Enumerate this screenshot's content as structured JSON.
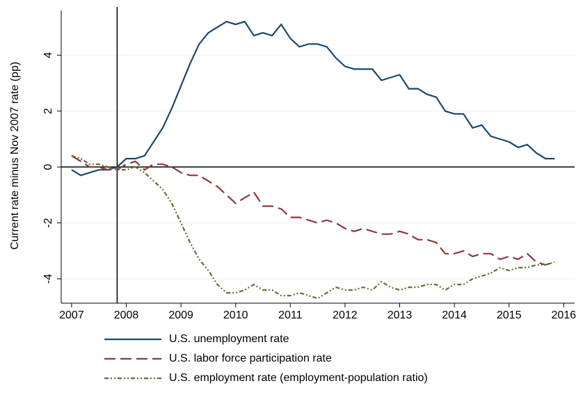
{
  "chart_data": {
    "type": "line",
    "ylabel": "Current rate minus Nov 2007 rate (pp)",
    "xlim": [
      2006.81,
      2016.2
    ],
    "ylim": [
      -4.87,
      5.6
    ],
    "xticks": [
      2007,
      2008,
      2009,
      2010,
      2011,
      2012,
      2013,
      2014,
      2015,
      2016
    ],
    "yticks": [
      -4,
      -2,
      0,
      2,
      4
    ],
    "grid": true,
    "xline": 2007.833,
    "yline": 0,
    "legend": "bottom",
    "x": [
      2007,
      2007.167,
      2007.333,
      2007.5,
      2007.667,
      2007.833,
      2008,
      2008.167,
      2008.333,
      2008.5,
      2008.667,
      2008.833,
      2009,
      2009.167,
      2009.333,
      2009.5,
      2009.667,
      2009.833,
      2010,
      2010.167,
      2010.333,
      2010.5,
      2010.667,
      2010.833,
      2011,
      2011.167,
      2011.333,
      2011.5,
      2011.667,
      2011.833,
      2012,
      2012.167,
      2012.333,
      2012.5,
      2012.667,
      2012.833,
      2013,
      2013.167,
      2013.333,
      2013.5,
      2013.667,
      2013.833,
      2014,
      2014.167,
      2014.333,
      2014.5,
      2014.667,
      2014.833,
      2015,
      2015.167,
      2015.333,
      2015.5,
      2015.667,
      2015.833
    ],
    "series": [
      {
        "name": "U.S. unemployment rate",
        "color": "#1a476f",
        "style": "solid",
        "values": [
          -0.1,
          -0.3,
          -0.2,
          -0.1,
          -0.1,
          0,
          0.3,
          0.3,
          0.4,
          0.9,
          1.4,
          2.1,
          2.9,
          3.7,
          4.4,
          4.8,
          5.0,
          5.2,
          5.1,
          5.2,
          4.7,
          4.8,
          4.7,
          5.1,
          4.6,
          4.3,
          4.4,
          4.4,
          4.3,
          3.9,
          3.6,
          3.5,
          3.5,
          3.5,
          3.1,
          3.2,
          3.3,
          2.8,
          2.8,
          2.6,
          2.5,
          2.0,
          1.9,
          1.9,
          1.4,
          1.5,
          1.1,
          1.0,
          0.9,
          0.7,
          0.8,
          0.5,
          0.3,
          0.3
        ]
      },
      {
        "name": "U.S. labor force participation rate",
        "color": "#90353b",
        "style": "dashed",
        "values": [
          0.4,
          0.2,
          0,
          0,
          -0.1,
          -0.1,
          0.1,
          0.2,
          -0.1,
          0.1,
          0.1,
          0,
          -0.2,
          -0.3,
          -0.3,
          -0.5,
          -0.7,
          -1.0,
          -1.3,
          -1.1,
          -0.9,
          -1.4,
          -1.4,
          -1.5,
          -1.8,
          -1.8,
          -1.9,
          -2.0,
          -1.9,
          -2.0,
          -2.2,
          -2.3,
          -2.2,
          -2.3,
          -2.4,
          -2.4,
          -2.3,
          -2.4,
          -2.6,
          -2.6,
          -2.7,
          -3.1,
          -3.1,
          -3.0,
          -3.2,
          -3.1,
          -3.1,
          -3.3,
          -3.2,
          -3.3,
          -3.1,
          -3.4,
          -3.5,
          -3.4
        ]
      },
      {
        "name": "U.S. employment rate (employment-population ratio)",
        "color": "#55752f",
        "style": "dashdot",
        "values": [
          0.4,
          0.3,
          0.1,
          0.1,
          0,
          -0.1,
          -0.1,
          0,
          -0.2,
          -0.5,
          -0.8,
          -1.3,
          -2.0,
          -2.7,
          -3.3,
          -3.7,
          -4.2,
          -4.5,
          -4.5,
          -4.4,
          -4.2,
          -4.4,
          -4.4,
          -4.6,
          -4.6,
          -4.5,
          -4.6,
          -4.7,
          -4.5,
          -4.3,
          -4.4,
          -4.4,
          -4.3,
          -4.4,
          -4.1,
          -4.3,
          -4.4,
          -4.3,
          -4.3,
          -4.2,
          -4.2,
          -4.4,
          -4.2,
          -4.2,
          -4.0,
          -3.9,
          -3.8,
          -3.6,
          -3.7,
          -3.6,
          -3.6,
          -3.5,
          -3.5,
          -3.4
        ]
      }
    ]
  }
}
